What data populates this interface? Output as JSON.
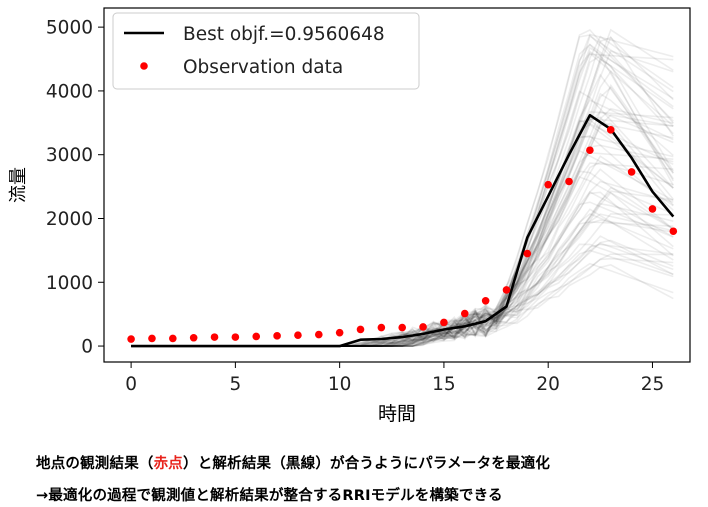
{
  "chart_data": {
    "type": "line",
    "xlabel": "時間",
    "ylabel": "流量",
    "xlim": [
      -1.3,
      26.8
    ],
    "ylim": [
      -250,
      5300
    ],
    "xticks": [
      0,
      5,
      10,
      15,
      20,
      25
    ],
    "yticks": [
      0,
      1000,
      2000,
      3000,
      4000,
      5000
    ],
    "legend_position": "top-left",
    "x": [
      0,
      1,
      2,
      3,
      4,
      5,
      6,
      7,
      8,
      9,
      10,
      11,
      12,
      13,
      14,
      15,
      16,
      17,
      18,
      19,
      20,
      21,
      22,
      23,
      24,
      25,
      26
    ],
    "series": [
      {
        "name": "Best objf.=0.9560648",
        "style": "line",
        "color": "#000000",
        "values": [
          0,
          0,
          0,
          0,
          0,
          0,
          0,
          0,
          0,
          0,
          0,
          100,
          110,
          140,
          190,
          260,
          310,
          390,
          620,
          1700,
          2350,
          3000,
          3620,
          3400,
          2950,
          2420,
          2030
        ]
      },
      {
        "name": "Observation data",
        "style": "points",
        "color": "#ff0000",
        "values": [
          110,
          120,
          120,
          130,
          140,
          140,
          150,
          160,
          170,
          180,
          210,
          260,
          290,
          290,
          300,
          370,
          510,
          710,
          880,
          1450,
          2530,
          2580,
          3070,
          3390,
          2730,
          2150,
          1800
        ]
      }
    ],
    "ensemble_color": "#000000"
  },
  "caption": {
    "line1_part1": "地点の観測結果（",
    "line1_red": "赤点",
    "line1_part2": "）と解析結果（黒線）が合うようにパラメータを最適化",
    "line2": "→最適化の過程で観測値と解析結果が整合するRRIモデルを構築できる"
  }
}
